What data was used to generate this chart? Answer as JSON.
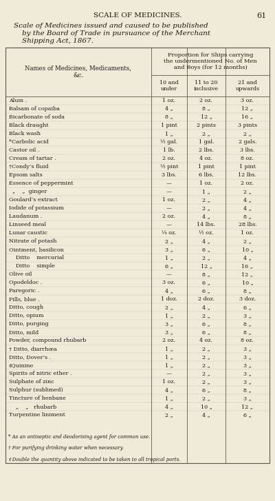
{
  "page_header": "SCALE OF MEDICINES.",
  "page_number": "61",
  "subtitle_line1": "Scale of Medicines issued and caused to be published",
  "subtitle_line2": "by the Board of Trade in pursuance of the Merchant",
  "subtitle_line3": "Shipping Act, 1867.",
  "col_header_main": "Proportion for Ships carrying\nthe undermentioned No. of Men\nand Boys (for 12 months)",
  "col_header_left": "Names of Medicines, Medicaments,\n&c.",
  "col_headers": [
    "10 and\nunder",
    "11 to 20\ninclusive",
    "21 and\nupwards"
  ],
  "rows": [
    [
      "Alum .",
      "1 oz.",
      "2 oz.",
      "3 oz."
    ],
    [
      "Balsam of copaiba",
      "4 „",
      "8 „",
      "12 „"
    ],
    [
      "Bicarbonate of soda",
      "8 „",
      "12 „",
      "16 „"
    ],
    [
      "Black draught",
      "1 pint",
      "2 pints",
      "3 pints"
    ],
    [
      "Black wash",
      "1 „",
      "2 „",
      "2 „"
    ],
    [
      "*Carbolic acid",
      "½ gal.",
      "1 gal.",
      "2 gals."
    ],
    [
      "Castor oil .",
      "1 lb.",
      "2 lbs.",
      "3 lbs."
    ],
    [
      "Cream of tartar .",
      "2 oz.",
      "4 oz.",
      "8 oz."
    ],
    [
      "†Condy’s fluid",
      "½ pint",
      "1 pint",
      "1 pint"
    ],
    [
      "Epsom salts",
      "3 lbs.",
      "6 lbs.",
      "12 lbs."
    ],
    [
      "Essence of peppermint",
      "—",
      "1 oz.",
      "2 oz."
    ],
    [
      "  „    „  ginger",
      "—",
      "1 „",
      "2 „"
    ],
    [
      "Goulard’s extract",
      "1 oz.",
      "2 „",
      "4 „"
    ],
    [
      "Iodide of potassium",
      "—",
      "2 „",
      "4 „"
    ],
    [
      "Laudanum .",
      "2 oz.",
      "4 „",
      "8 „"
    ],
    [
      "Linseed meal",
      "—",
      "14 lbs.",
      "28 lbs."
    ],
    [
      "Lunar caustic",
      "¼ oz.",
      "½ oz.",
      "1 oz."
    ],
    [
      "Nitrate of potash",
      "2 „",
      "4 „",
      "2 „"
    ],
    [
      "Ointment, basilicon",
      "3 „",
      "6 „",
      "10 „"
    ],
    [
      "    Ditto    mercurial",
      "1 „",
      "2 „",
      "4 „"
    ],
    [
      "    Ditto    simple",
      "6 „",
      "12 „",
      "16 „"
    ],
    [
      "Olive oil",
      "—",
      "8 „",
      "12 „"
    ],
    [
      "Opodeldoc .",
      "3 oz.",
      "6 „",
      "10 „"
    ],
    [
      "Paregoric .",
      "4 „",
      "6 „",
      "8 „"
    ],
    [
      "Pills, blue .",
      "1 doz.",
      "2 doz.",
      "3 doz."
    ],
    [
      "Ditto, cough",
      "2 „",
      "4 „",
      "6 „"
    ],
    [
      "Ditto, opium",
      "1 „",
      "2 „",
      "3 „"
    ],
    [
      "Ditto, purging",
      "3 „",
      "6 „",
      "8 „"
    ],
    [
      "Ditto, mild",
      "3 „",
      "6 „",
      "8 „"
    ],
    [
      "Powder, compound rhubarb",
      "2 oz.",
      "4 oz.",
      "8 oz."
    ],
    [
      "† Ditto, diarrhœa",
      "1 „",
      "2 „",
      "3 „"
    ],
    [
      "Ditto, Dover’s .",
      "1 „",
      "2 „",
      "3 „"
    ],
    [
      "‡Quinine",
      "1 „",
      "2 „",
      "3 „"
    ],
    [
      "Spirits of nitric ether .",
      "—",
      "2 „",
      "3 „"
    ],
    [
      "Sulphate of zinc",
      "1 oz.",
      "2 „",
      "3 „"
    ],
    [
      "Sulphur (sublimed)",
      "4 „",
      "6 „",
      "8 „"
    ],
    [
      "Tincture of henbane",
      "1 „",
      "2 „",
      "3 „"
    ],
    [
      "    „    „   rhubarb",
      "4 „",
      "10 „",
      "12 „"
    ],
    [
      "Turpentine liniment",
      "2 „",
      "4 „",
      "6 „"
    ]
  ],
  "footnotes": [
    "* As an antiseptic and deodorising agent for common use.",
    "† For purifying drinking water when necessary.",
    "‡ Double the quantity above indicated to be taken to all tropical ports."
  ],
  "bg_color": "#f0ead8",
  "text_color": "#1a1a1a",
  "line_color": "#555555"
}
